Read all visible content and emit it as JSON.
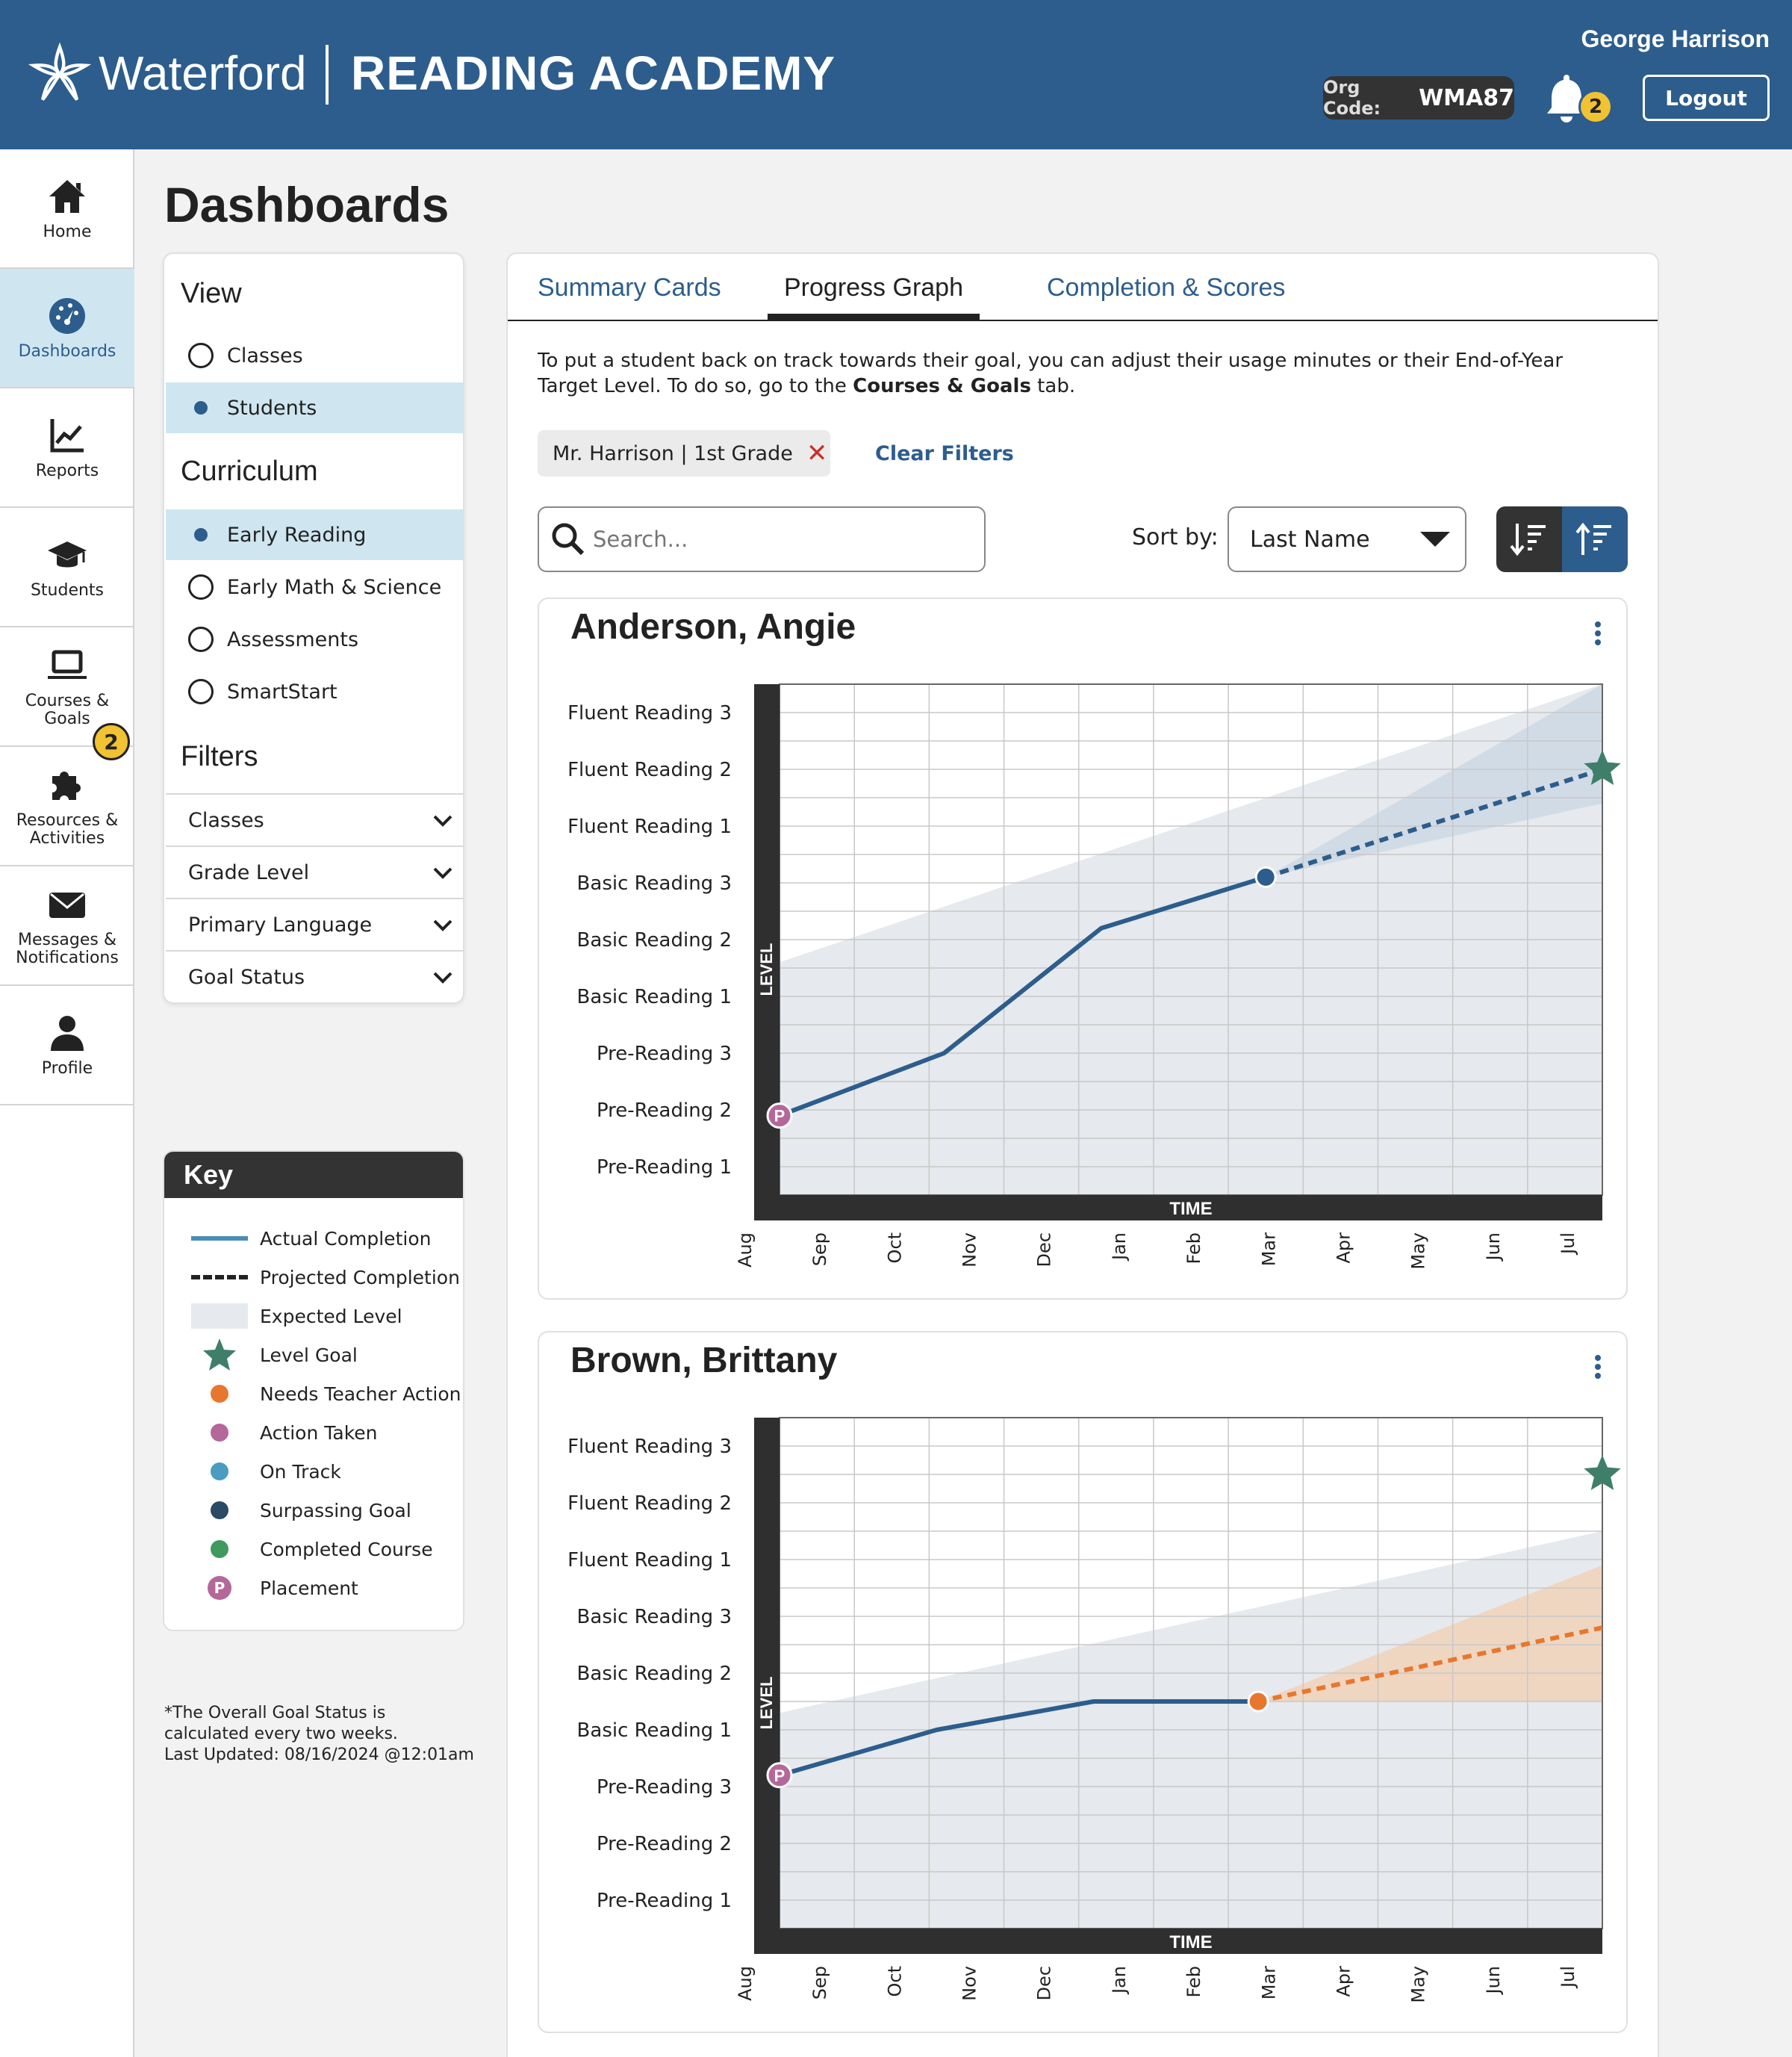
{
  "header": {
    "brand_word": "Waterford",
    "product_name": "READING ACADEMY",
    "user_name": "George Harrison",
    "org_code_label": "Org Code:",
    "org_code_value": "WMA87",
    "notification_count": "2",
    "logout_label": "Logout"
  },
  "sidenav": {
    "items": [
      {
        "label": "Home",
        "icon": "home-icon"
      },
      {
        "label": "Dashboards",
        "icon": "gauge-icon",
        "active": true
      },
      {
        "label": "Reports",
        "icon": "line-chart-icon"
      },
      {
        "label": "Students",
        "icon": "graduation-cap-icon"
      },
      {
        "label": "Courses &\nGoals",
        "icon": "laptop-icon"
      },
      {
        "label": "Resources &\nActivities",
        "icon": "puzzle-icon"
      },
      {
        "label": "Messages &\nNotifications",
        "icon": "envelope-icon"
      },
      {
        "label": "Profile",
        "icon": "person-icon"
      }
    ],
    "messages_badge": "2"
  },
  "page_title": "Dashboards",
  "filters_panel": {
    "view_heading": "View",
    "view_options": [
      {
        "label": "Classes",
        "selected": false
      },
      {
        "label": "Students",
        "selected": true
      }
    ],
    "curriculum_heading": "Curriculum",
    "curriculum_options": [
      {
        "label": "Early Reading",
        "selected": true
      },
      {
        "label": "Early Math & Science",
        "selected": false
      },
      {
        "label": "Assessments",
        "selected": false
      },
      {
        "label": "SmartStart",
        "selected": false
      }
    ],
    "filters_heading": "Filters",
    "filter_dropdowns": [
      "Classes",
      "Grade Level",
      "Primary Language",
      "Goal Status"
    ]
  },
  "key": {
    "title": "Key",
    "items": [
      {
        "label": "Actual Completion",
        "swatch": "solid-line",
        "color": "#4a8db5"
      },
      {
        "label": "Projected Completion",
        "swatch": "dashed-line",
        "color": "#222222"
      },
      {
        "label": "Expected Level",
        "swatch": "block",
        "color": "#e6e9ed"
      },
      {
        "label": "Level Goal",
        "swatch": "star",
        "color": "#3f7f6a"
      },
      {
        "label": "Needs Teacher Action",
        "swatch": "dot",
        "color": "#e8772e"
      },
      {
        "label": "Action Taken",
        "swatch": "dot",
        "color": "#b5679a"
      },
      {
        "label": "On Track",
        "swatch": "dot",
        "color": "#4a9cc0"
      },
      {
        "label": "Surpassing Goal",
        "swatch": "dot",
        "color": "#2a4a66"
      },
      {
        "label": "Completed Course",
        "swatch": "dot",
        "color": "#3e9a5e"
      },
      {
        "label": "Placement",
        "swatch": "placement",
        "color": "#b5679a",
        "letter": "P"
      }
    ]
  },
  "footnote": {
    "line1": "*The Overall Goal Status is",
    "line2": "calculated every two weeks.",
    "line3": "Last Updated: 08/16/2024 @12:01am"
  },
  "tabs": [
    {
      "label": "Summary Cards",
      "active": false
    },
    {
      "label": "Progress Graph",
      "active": true
    },
    {
      "label": "Completion & Scores",
      "active": false
    }
  ],
  "instructions": {
    "text_before": "To put a student back on track towards their goal, you can adjust their usage minutes or their End-of-Year Target Level. To do so, go to the ",
    "link_text": "Courses & Goals",
    "text_after": " tab."
  },
  "active_filter_chip": "Mr. Harrison | 1st Grade",
  "clear_filters_label": "Clear Filters",
  "search": {
    "placeholder": "Search..."
  },
  "sort": {
    "label": "Sort by:",
    "value": "Last Name",
    "descending_icon": "sort-descending-icon",
    "ascending_icon": "sort-ascending-icon",
    "active": "ascending"
  },
  "colors": {
    "brand": "#2c5d8d",
    "actual_line": "#2c5d8d",
    "on_track_band": "#c9d6e3",
    "needs_action_band": "#f2cfb2",
    "needs_action": "#e8772e",
    "goal_star": "#3f7f6a",
    "placement": "#b5679a"
  },
  "chart_data": [
    {
      "type": "line",
      "student": "Anderson, Angie",
      "xlabel": "TIME",
      "ylabel": "LEVEL",
      "x": [
        "Aug",
        "Sep",
        "Oct",
        "Nov",
        "Dec",
        "Jan",
        "Feb",
        "Mar",
        "Apr",
        "May",
        "Jun",
        "Jul"
      ],
      "y_levels": [
        "Pre-Reading 1",
        "Pre-Reading 2",
        "Pre-Reading 3",
        "Basic Reading 1",
        "Basic Reading 2",
        "Basic Reading 3",
        "Fluent Reading 1",
        "Fluent Reading 2",
        "Fluent Reading 3"
      ],
      "ylim": [
        0.5,
        9.5
      ],
      "grid": true,
      "expected_level": {
        "x": [
          0,
          11
        ],
        "y": [
          4.6,
          9.5
        ]
      },
      "actual": {
        "x": [
          0,
          2.2,
          4.3,
          6.5
        ],
        "y": [
          1.9,
          3.0,
          5.2,
          6.1
        ],
        "placement_index": 0,
        "status": "Surpassing Goal"
      },
      "projected": {
        "x": [
          6.5,
          11
        ],
        "y": [
          6.1,
          8.0
        ],
        "band_upper": [
          6.1,
          9.5
        ],
        "band_lower": [
          6.1,
          7.4
        ]
      },
      "goal": {
        "x": 11,
        "y": 8.0
      },
      "status_color": "#2c5d8d"
    },
    {
      "type": "line",
      "student": "Brown, Brittany",
      "xlabel": "TIME",
      "ylabel": "LEVEL",
      "x": [
        "Aug",
        "Sep",
        "Oct",
        "Nov",
        "Dec",
        "Jan",
        "Feb",
        "Mar",
        "Apr",
        "May",
        "Jun",
        "Jul"
      ],
      "y_levels": [
        "Pre-Reading 1",
        "Pre-Reading 2",
        "Pre-Reading 3",
        "Basic Reading 1",
        "Basic Reading 2",
        "Basic Reading 3",
        "Fluent Reading 1",
        "Fluent Reading 2",
        "Fluent Reading 3"
      ],
      "ylim": [
        0.5,
        9.5
      ],
      "grid": true,
      "expected_level": {
        "x": [
          0,
          11
        ],
        "y": [
          4.3,
          7.5
        ]
      },
      "actual": {
        "x": [
          0,
          2.1,
          4.2,
          6.4
        ],
        "y": [
          3.2,
          4.0,
          4.5,
          4.5
        ],
        "placement_index": 0,
        "status": "Needs Teacher Action"
      },
      "projected": {
        "x": [
          6.4,
          11
        ],
        "y": [
          4.5,
          5.8
        ],
        "band_upper": [
          4.5,
          6.9
        ],
        "band_lower": [
          4.5,
          4.5
        ]
      },
      "goal": {
        "x": 11,
        "y": 8.5
      },
      "status_color": "#e8772e"
    }
  ]
}
